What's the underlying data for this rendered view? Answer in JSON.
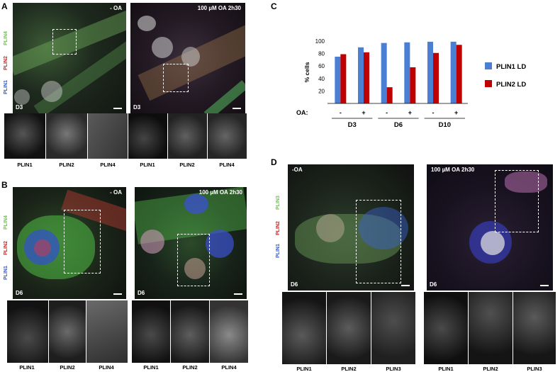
{
  "panels": {
    "A": {
      "letter": "A",
      "left_tag": "- OA",
      "right_tag": "100 µM OA 2h30",
      "day_left": "D3",
      "day_right": "D3",
      "channels": [
        "PLIN4",
        "PLIN2",
        "PLIN1"
      ],
      "subs_left": [
        "PLIN1",
        "PLIN2",
        "PLIN4"
      ],
      "subs_right": [
        "PLIN1",
        "PLIN2",
        "PLIN4"
      ]
    },
    "B": {
      "letter": "B",
      "left_tag": "- OA",
      "right_tag": "100 µM OA 2h30",
      "day_left": "D6",
      "day_right": "D6",
      "channels": [
        "PLIN4",
        "PLIN2",
        "PLIN1"
      ],
      "subs_left": [
        "PLIN1",
        "PLIN2",
        "PLIN4"
      ],
      "subs_right": [
        "PLIN1",
        "PLIN2",
        "PLIN4"
      ]
    },
    "C": {
      "letter": "C"
    },
    "D": {
      "letter": "D",
      "left_tag": "-OA",
      "right_tag": "100 µM OA 2h30",
      "day_left": "D6",
      "day_right": "D6",
      "channels": [
        "PLIN3",
        "PLIN2",
        "PLIN1"
      ],
      "subs_left": [
        "PLIN1",
        "PLIN2",
        "PLIN3"
      ],
      "subs_right": [
        "PLIN1",
        "PLIN2",
        "PLIN3"
      ]
    }
  },
  "colors": {
    "plin1": "#4a7fd4",
    "plin2": "#c00000",
    "green": "#70c050",
    "red": "#d02020",
    "blue": "#2a5bd7"
  },
  "chart_data": {
    "type": "bar",
    "ylabel": "% cells",
    "ylim": [
      0,
      100
    ],
    "yticks": [
      20,
      40,
      60,
      80,
      100
    ],
    "oa_label": "OA:",
    "oa_signs": [
      "-",
      "+",
      "-",
      "+",
      "-",
      "+"
    ],
    "groups": [
      "D3",
      "D6",
      "D10"
    ],
    "series": [
      {
        "name": "PLIN1 LD",
        "color": "#4a7fd4",
        "values": [
          75,
          90,
          97,
          98,
          99,
          99
        ]
      },
      {
        "name": "PLIN2 LD",
        "color": "#c00000",
        "values": [
          79,
          82,
          26,
          58,
          81,
          94
        ]
      }
    ]
  }
}
